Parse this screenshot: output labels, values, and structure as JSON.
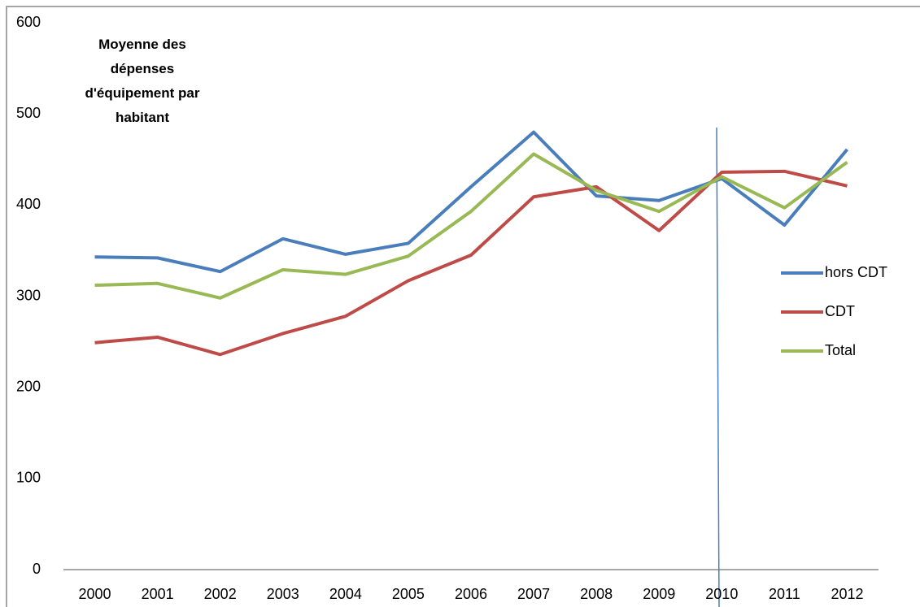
{
  "chart_data": {
    "type": "line",
    "title": "Moyenne des dépenses d'équipement par habitant",
    "categories": [
      "2000",
      "2001",
      "2002",
      "2003",
      "2004",
      "2005",
      "2006",
      "2007",
      "2008",
      "2009",
      "2010",
      "2011",
      "2012"
    ],
    "series": [
      {
        "name": "hors CDT",
        "color": "#4a7ebb",
        "values": [
          343,
          342,
          327,
          363,
          346,
          358,
          420,
          480,
          410,
          405,
          429,
          378,
          461
        ]
      },
      {
        "name": "CDT",
        "color": "#be4b48",
        "values": [
          249,
          255,
          236,
          259,
          278,
          317,
          345,
          409,
          420,
          372,
          436,
          437,
          421
        ]
      },
      {
        "name": "Total",
        "color": "#98b954",
        "values": [
          312,
          314,
          298,
          329,
          324,
          344,
          393,
          456,
          416,
          393,
          431,
          397,
          447
        ]
      }
    ],
    "ylim": [
      0,
      600
    ],
    "yticks": [
      0,
      100,
      200,
      300,
      400,
      500,
      600
    ],
    "grid": false,
    "legend": "right"
  }
}
